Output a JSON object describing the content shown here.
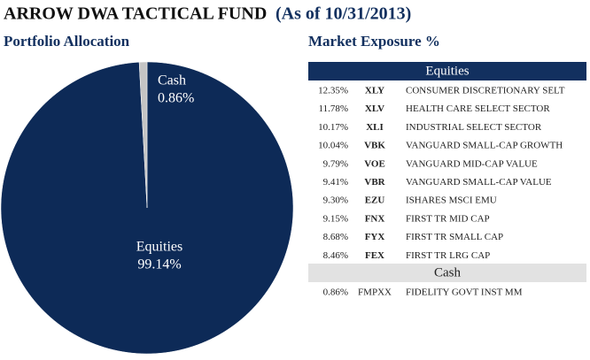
{
  "header": {
    "title": "ARROW DWA TACTICAL FUND",
    "date": "(As of 10/31/2013)"
  },
  "chart_data": {
    "type": "pie",
    "title": "Portfolio Allocation",
    "categories": [
      "Equities",
      "Cash"
    ],
    "values": [
      99.14,
      0.86
    ],
    "value_labels": [
      "99.14%",
      "0.86%"
    ],
    "colors": [
      "#0d2a57",
      "#c4c4c4"
    ]
  },
  "table": {
    "title": "Market Exposure %",
    "sections": [
      {
        "title": "Equities",
        "rows": [
          [
            "12.35%",
            "XLY",
            "CONSUMER DISCRETIONARY SELT"
          ],
          [
            "11.78%",
            "XLV",
            "HEALTH CARE SELECT SECTOR"
          ],
          [
            "10.17%",
            "XLI",
            "INDUSTRIAL SELECT SECTOR"
          ],
          [
            "10.04%",
            "VBK",
            "VANGUARD SMALL-CAP GROWTH"
          ],
          [
            "9.79%",
            "VOE",
            "VANGUARD MID-CAP VALUE"
          ],
          [
            "9.41%",
            "VBR",
            "VANGUARD SMALL-CAP VALUE"
          ],
          [
            "9.30%",
            "EZU",
            "ISHARES MSCI EMU"
          ],
          [
            "9.15%",
            "FNX",
            "FIRST TR MID CAP"
          ],
          [
            "8.68%",
            "FYX",
            "FIRST TR SMALL CAP"
          ],
          [
            "8.46%",
            "FEX",
            "FIRST TR LRG CAP"
          ]
        ]
      },
      {
        "title": "Cash",
        "rows": [
          [
            "0.86%",
            "FMPXX",
            "FIDELITY GOVT INST MM"
          ]
        ]
      }
    ]
  }
}
